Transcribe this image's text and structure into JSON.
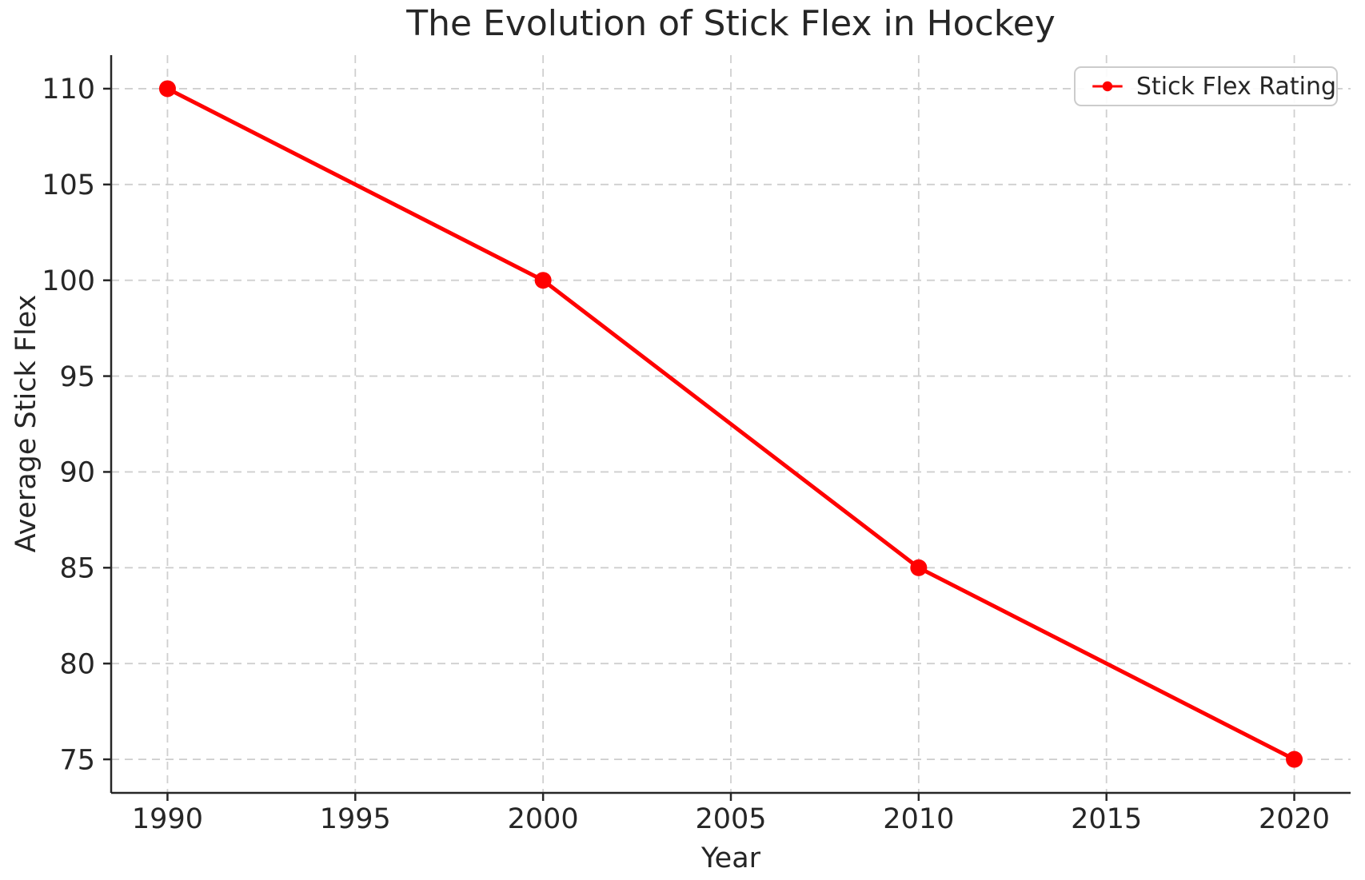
{
  "chart_data": {
    "type": "line",
    "title": "The Evolution of Stick Flex in Hockey",
    "xlabel": "Year",
    "ylabel": "Average Stick Flex",
    "x": [
      1990,
      2000,
      2010,
      2020
    ],
    "series": [
      {
        "name": "Stick Flex Rating",
        "values": [
          110,
          100,
          85,
          75
        ],
        "color": "#ff0000",
        "marker": "circle"
      }
    ],
    "xticks": [
      1990,
      1995,
      2000,
      2005,
      2010,
      2015,
      2020
    ],
    "yticks": [
      75,
      80,
      85,
      90,
      95,
      100,
      105,
      110
    ],
    "xlim": [
      1988.5,
      2021.5
    ],
    "ylim": [
      73.25,
      111.75
    ],
    "grid": true,
    "grid_style": "dashed",
    "legend_position": "upper right"
  },
  "legend": {
    "label": "Stick Flex Rating"
  },
  "colors": {
    "line": "#ff0000",
    "text": "#262626",
    "grid": "#cfcfcf",
    "spine": "#262626",
    "legend_border": "#cccccc",
    "background": "#ffffff"
  }
}
